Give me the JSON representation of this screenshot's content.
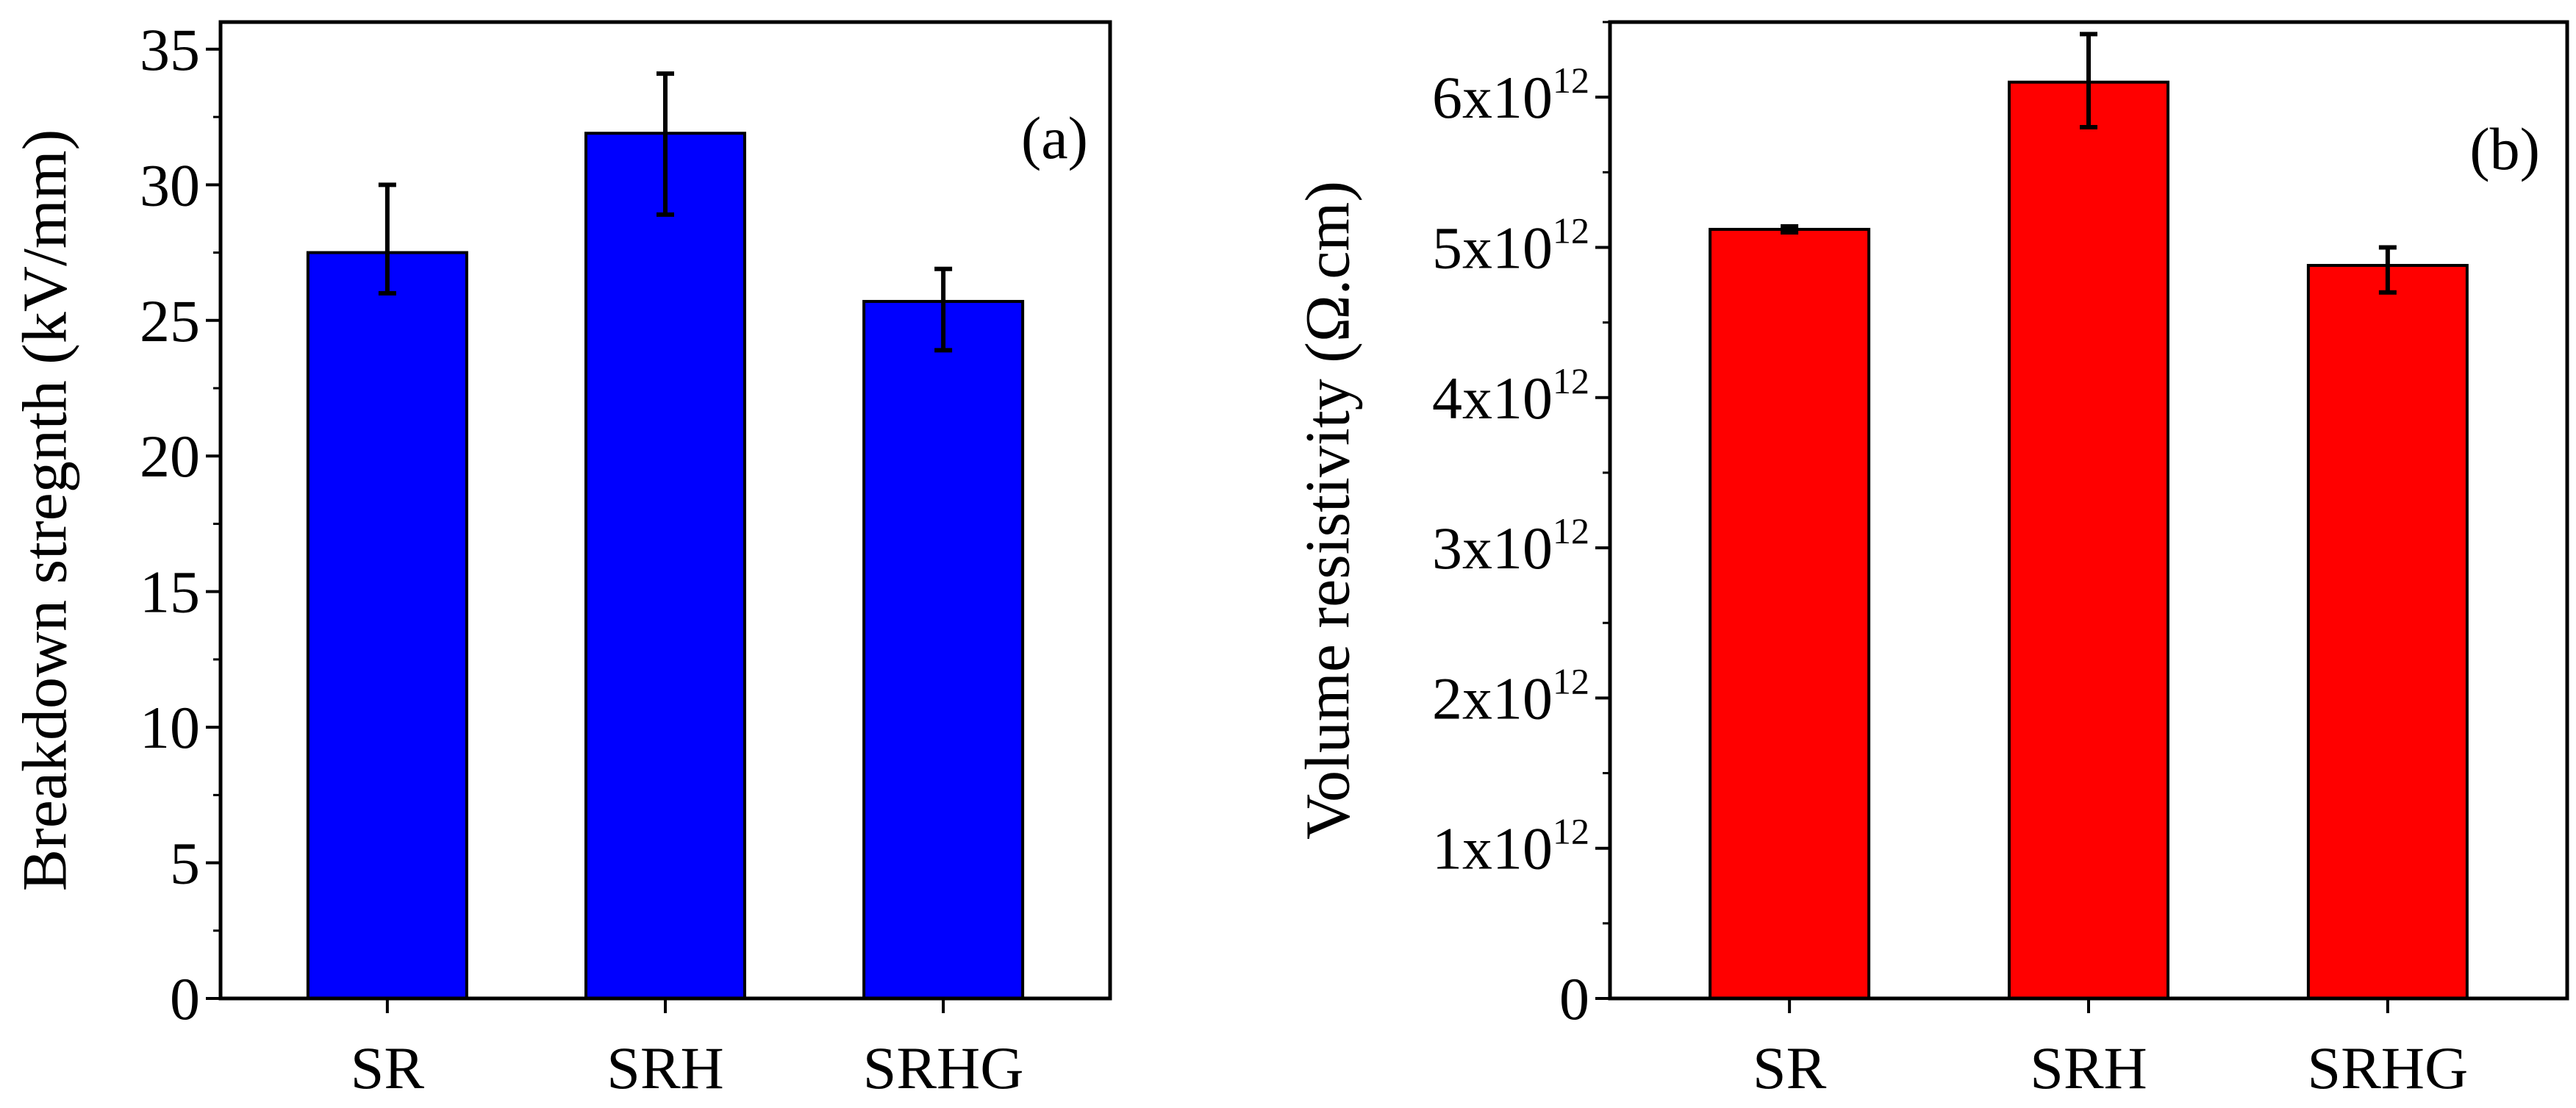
{
  "chart_data": [
    {
      "type": "bar",
      "panel_label": "(a)",
      "categories": [
        "SR",
        "SRH",
        "SRHG"
      ],
      "values": [
        27.5,
        31.9,
        25.7
      ],
      "error_low": [
        26.0,
        28.9,
        23.9
      ],
      "error_high": [
        30.0,
        34.1,
        26.9
      ],
      "ylabel": "Breakdown stregnth (kV/mm)",
      "xlabel": "",
      "ylim": [
        0,
        36
      ],
      "y_ticks": [
        {
          "value": 0,
          "label": "0"
        },
        {
          "value": 5,
          "label": "5"
        },
        {
          "value": 10,
          "label": "10"
        },
        {
          "value": 15,
          "label": "15"
        },
        {
          "value": 20,
          "label": "20"
        },
        {
          "value": 25,
          "label": "25"
        },
        {
          "value": 30,
          "label": "30"
        },
        {
          "value": 35,
          "label": "35"
        }
      ],
      "y_minor_step": 2.5,
      "color": "#0000ff"
    },
    {
      "type": "bar",
      "panel_label": "(b)",
      "categories": [
        "SR",
        "SRH",
        "SRHG"
      ],
      "values": [
        5120000000000.0,
        6100000000000.0,
        4880000000000.0
      ],
      "error_low": [
        5100000000000.0,
        5800000000000.0,
        4700000000000.0
      ],
      "error_high": [
        5140000000000.0,
        6420000000000.0,
        5000000000000.0
      ],
      "ylabel": "Volume resistivity (Ω.cm)",
      "xlabel": "",
      "ylim": [
        0,
        6500000000000.0
      ],
      "y_ticks": [
        {
          "value": 0,
          "label": "0",
          "exp": ""
        },
        {
          "value": 1000000000000.0,
          "label": "1x10",
          "exp": "12"
        },
        {
          "value": 2000000000000.0,
          "label": "2x10",
          "exp": "12"
        },
        {
          "value": 3000000000000.0,
          "label": "3x10",
          "exp": "12"
        },
        {
          "value": 4000000000000.0,
          "label": "4x10",
          "exp": "12"
        },
        {
          "value": 5000000000000.0,
          "label": "5x10",
          "exp": "12"
        },
        {
          "value": 6000000000000.0,
          "label": "6x10",
          "exp": "12"
        }
      ],
      "y_minor_step": 500000000000.0,
      "color": "#ff0000"
    }
  ]
}
